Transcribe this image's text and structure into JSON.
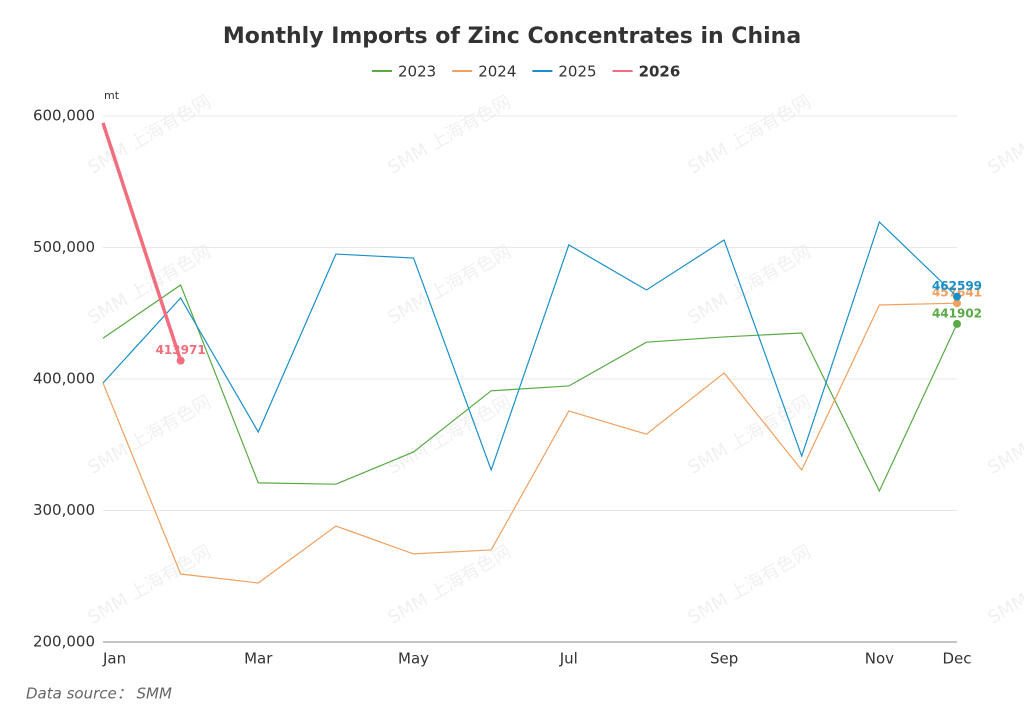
{
  "chart_data": {
    "type": "line",
    "title": "Monthly Imports of Zinc Concentrates in China",
    "y_unit": "mt",
    "source": "Data source： SMM",
    "watermark": "SMM 上海有色网",
    "categories": [
      "Jan",
      null,
      "Mar",
      null,
      "May",
      null,
      "Jul",
      null,
      "Sep",
      null,
      "Nov",
      "Dec"
    ],
    "series": [
      {
        "name": "2023",
        "color": "#5aaa46",
        "values": [
          431000,
          471500,
          321000,
          320000,
          344500,
          391000,
          394700,
          428000,
          432000,
          435000,
          314800,
          441902
        ]
      },
      {
        "name": "2024",
        "color": "#f0a060",
        "values": [
          397000,
          251700,
          244900,
          288200,
          267000,
          270000,
          375700,
          358000,
          404600,
          330800,
          456300,
          457641
        ]
      },
      {
        "name": "2025",
        "color": "#1a90c8",
        "values": [
          397000,
          461600,
          359700,
          495000,
          492000,
          330800,
          502000,
          467700,
          505700,
          341400,
          519400,
          462599
        ]
      },
      {
        "name": "2026",
        "color": "#f26d7d",
        "values": [
          594700,
          413971,
          null,
          null,
          null,
          null,
          null,
          null,
          null,
          null,
          null,
          null
        ]
      }
    ],
    "ylim": [
      200000,
      600000
    ],
    "yticks": [
      {
        "value": 200000,
        "label": "200,000"
      },
      {
        "value": 300000,
        "label": "300,000"
      },
      {
        "value": 400000,
        "label": "400,000"
      },
      {
        "value": 500000,
        "label": "500,000"
      },
      {
        "value": 600000,
        "label": "600,000"
      }
    ],
    "grid": true
  }
}
